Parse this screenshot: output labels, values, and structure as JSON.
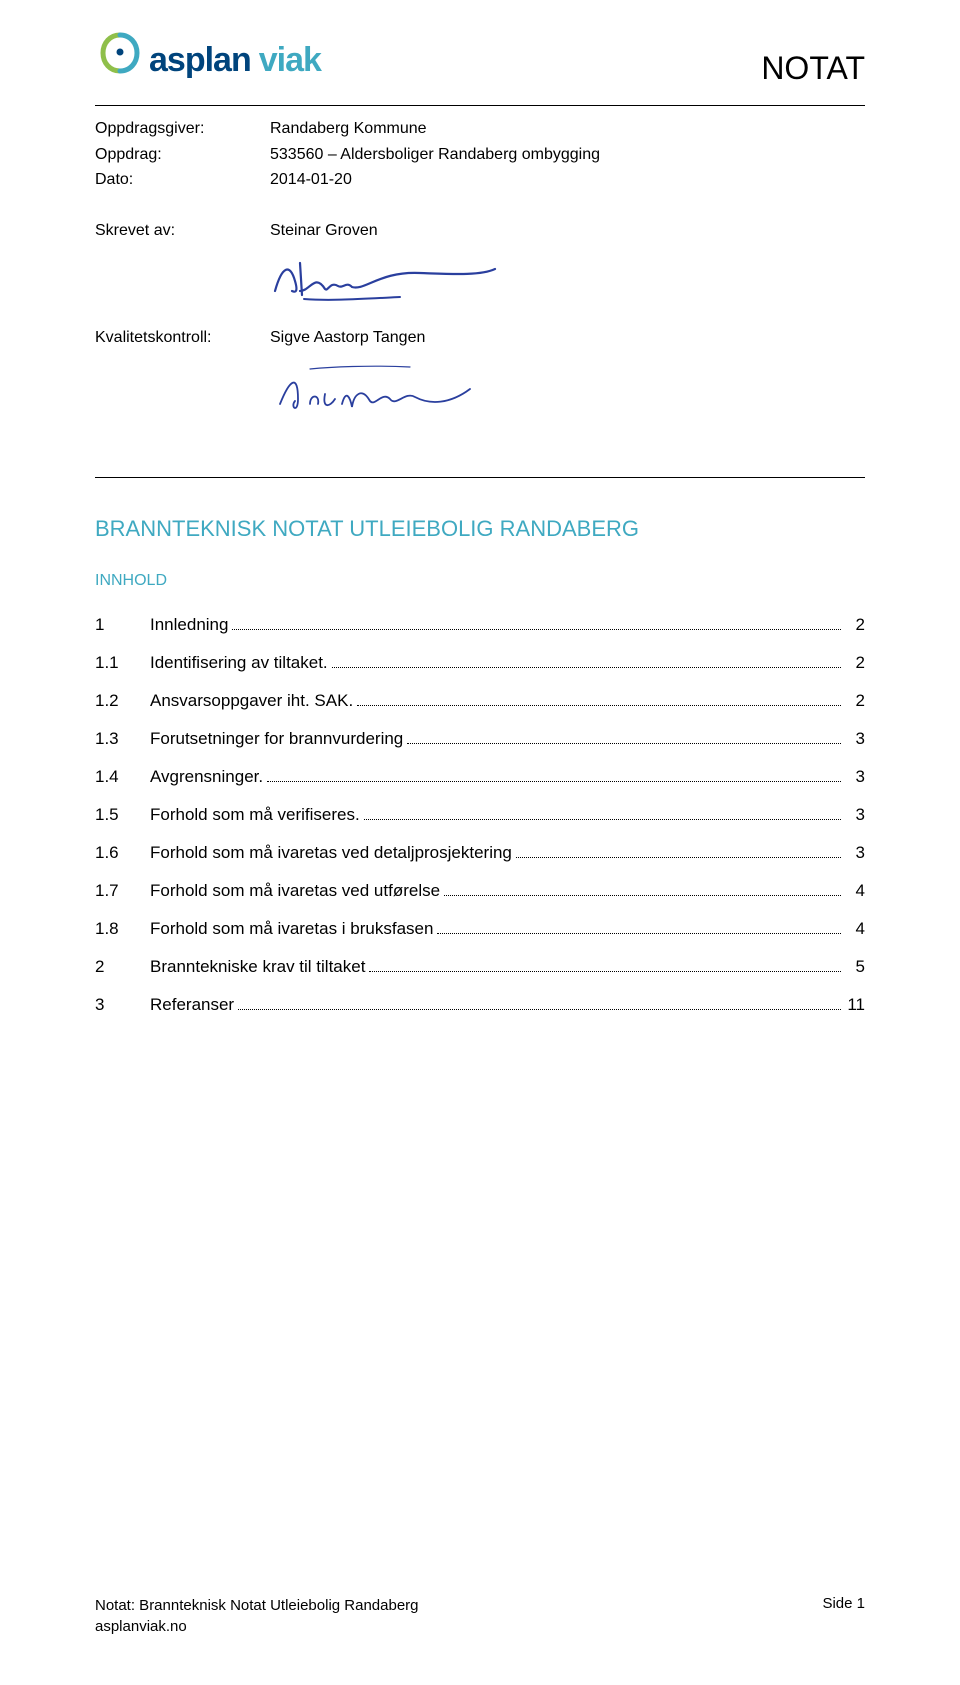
{
  "header": {
    "logo_asplan": "asplan",
    "logo_viak": "viak",
    "title": "NOTAT"
  },
  "meta": {
    "oppdragsgiver_label": "Oppdragsgiver:",
    "oppdragsgiver_value": "Randaberg Kommune",
    "oppdrag_label": "Oppdrag:",
    "oppdrag_value": "533560 – Aldersboliger Randaberg ombygging",
    "dato_label": "Dato:",
    "dato_value": "2014-01-20",
    "skrevet_label": "Skrevet av:",
    "skrevet_value": "Steinar Groven",
    "kvalitet_label": "Kvalitetskontroll:",
    "kvalitet_value": "Sigve Aastorp Tangen"
  },
  "doc_title": "BRANNTEKNISK NOTAT UTLEIEBOLIG RANDABERG",
  "innhold_label": "INNHOLD",
  "toc": [
    {
      "num": "1",
      "text": "Innledning",
      "page": "2",
      "level": 1
    },
    {
      "num": "1.1",
      "text": "Identifisering av tiltaket.",
      "page": "2",
      "level": 2
    },
    {
      "num": "1.2",
      "text": "Ansvarsoppgaver iht. SAK.",
      "page": "2",
      "level": 2
    },
    {
      "num": "1.3",
      "text": "Forutsetninger for brannvurdering",
      "page": "3",
      "level": 2
    },
    {
      "num": "1.4",
      "text": "Avgrensninger.",
      "page": "3",
      "level": 2
    },
    {
      "num": "1.5",
      "text": "Forhold som må verifiseres.",
      "page": "3",
      "level": 2
    },
    {
      "num": "1.6",
      "text": "Forhold som må ivaretas ved detaljprosjektering",
      "page": "3",
      "level": 2
    },
    {
      "num": "1.7",
      "text": "Forhold som må ivaretas ved utførelse",
      "page": "4",
      "level": 2
    },
    {
      "num": "1.8",
      "text": "Forhold som må ivaretas i bruksfasen",
      "page": "4",
      "level": 2
    },
    {
      "num": "2",
      "text": "Branntekniske krav til tiltaket",
      "page": "5",
      "level": 1
    },
    {
      "num": "3",
      "text": "Referanser",
      "page": "11",
      "level": 1
    }
  ],
  "footer": {
    "line1": "Notat: Brannteknisk Notat Utleiebolig Randaberg",
    "line2": "asplanviak.no",
    "side": "Side 1"
  },
  "colors": {
    "blue_dark": "#00447c",
    "teal": "#3fa9c1",
    "green": "#8fbf4a",
    "sig": "#2a3f9e"
  }
}
